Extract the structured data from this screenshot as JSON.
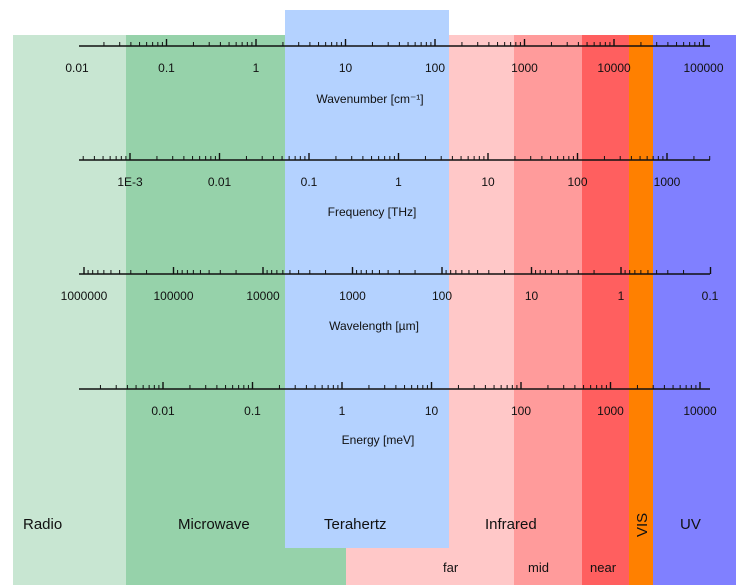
{
  "chart_data": {
    "type": "diagram",
    "bands": [
      {
        "name": "Radio",
        "color": "#c8e6d2"
      },
      {
        "name": "Microwave",
        "color": "#96d2aa"
      },
      {
        "name": "Terahertz",
        "color": "#b4d2ff"
      },
      {
        "name": "Infrared",
        "color": "#ffc8c8"
      },
      {
        "name": "VIS",
        "color": "#ff8000"
      },
      {
        "name": "UV",
        "color": "#8080ff"
      }
    ],
    "infrared_subbands": [
      {
        "name": "far",
        "color": "#ffc8c8"
      },
      {
        "name": "mid",
        "color": "#ff9b9b"
      },
      {
        "name": "near",
        "color": "#ff5f5f"
      }
    ],
    "axes": [
      {
        "id": "wavenumber",
        "title": "Wavenumber [cm⁻¹]",
        "ticks": [
          "0.01",
          "0.1",
          "1",
          "10",
          "100",
          "1000",
          "10000",
          "100000"
        ]
      },
      {
        "id": "frequency",
        "title": "Frequency [THz]",
        "ticks": [
          "1E-3",
          "0.01",
          "0.1",
          "1",
          "10",
          "100",
          "1000"
        ]
      },
      {
        "id": "wavelength",
        "title": "Wavelength [µm]",
        "ticks": [
          "1000000",
          "100000",
          "10000",
          "1000",
          "100",
          "10",
          "1",
          "0.1"
        ]
      },
      {
        "id": "energy",
        "title": "Energy [meV]",
        "ticks": [
          "0.01",
          "0.1",
          "1",
          "10",
          "100",
          "1000",
          "10000"
        ]
      }
    ]
  }
}
